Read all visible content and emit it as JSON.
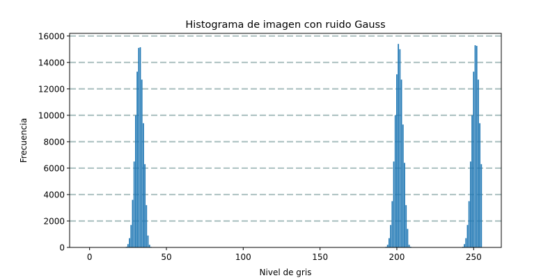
{
  "chart_data": {
    "type": "bar",
    "title": "Histograma de imagen con ruido Gauss",
    "xlabel": "Nivel de gris",
    "ylabel": "Frecuencia",
    "xlim": [
      -13,
      268
    ],
    "ylim": [
      0,
      16200
    ],
    "xticks": [
      0,
      50,
      100,
      150,
      200,
      250
    ],
    "yticks": [
      0,
      2000,
      4000,
      6000,
      8000,
      10000,
      12000,
      14000,
      16000
    ],
    "grid": "horizontal dashed",
    "colors": {
      "bar": "#1f77b4",
      "grid": "#b0c4c4",
      "axis": "#000000"
    },
    "series": [
      {
        "x": [
          24,
          25,
          26,
          27,
          28,
          29,
          30,
          31,
          32,
          33,
          34,
          35,
          36,
          37,
          38,
          39,
          40,
          193,
          194,
          195,
          196,
          197,
          198,
          199,
          200,
          201,
          202,
          203,
          204,
          205,
          206,
          207,
          208,
          209,
          243,
          244,
          245,
          246,
          247,
          248,
          249,
          250,
          251,
          252,
          253,
          254,
          255
        ],
        "values": [
          50,
          250,
          700,
          1700,
          3600,
          6500,
          10000,
          13300,
          15100,
          15150,
          12700,
          9400,
          6300,
          3200,
          900,
          200,
          40,
          50,
          200,
          700,
          1700,
          3500,
          6500,
          10000,
          13100,
          15400,
          15000,
          12700,
          9300,
          6400,
          3200,
          1400,
          200,
          50,
          50,
          250,
          700,
          1700,
          3500,
          6500,
          10000,
          13300,
          15300,
          15250,
          12700,
          9400,
          6300
        ]
      }
    ]
  }
}
